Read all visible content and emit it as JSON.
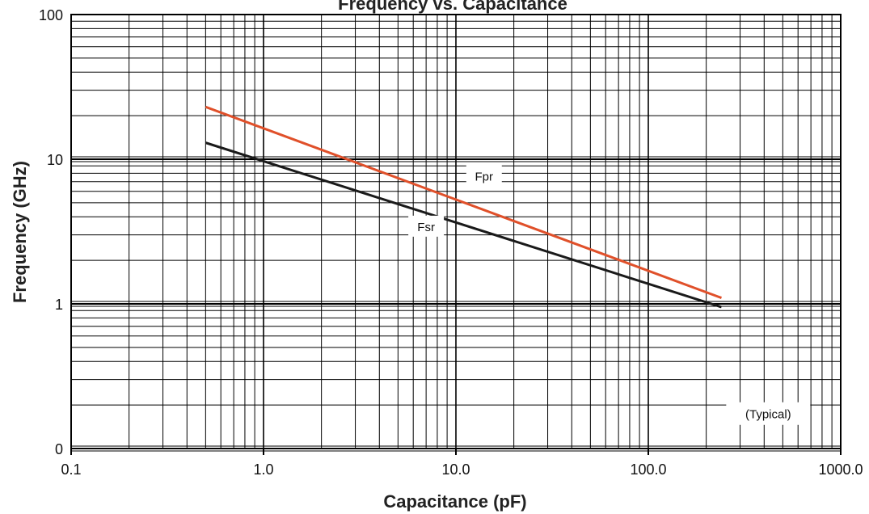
{
  "chart_data": {
    "type": "line",
    "title": "Frequency vs. Capacitance",
    "xlabel": "Capacitance (pF)",
    "ylabel": "Frequency (GHz)",
    "x_scale": "log",
    "y_scale": "log",
    "xlim": [
      0.1,
      1000
    ],
    "ylim": [
      0.1,
      100
    ],
    "x_ticks": [
      0.1,
      1,
      10,
      100,
      1000
    ],
    "x_tick_labels": [
      "0.1",
      "1.0",
      "10.0",
      "100.0",
      "1000.0"
    ],
    "y_ticks": [
      0.1,
      1,
      10,
      100
    ],
    "y_tick_labels": [
      "0",
      "1",
      "10",
      "100"
    ],
    "grid": true,
    "note": "(Typical)",
    "series": [
      {
        "name": "Fpr",
        "color": "#e0502a",
        "x": [
          0.5,
          240
        ],
        "y": [
          23,
          1.1
        ]
      },
      {
        "name": "Fsr",
        "color": "#1a1a1a",
        "x": [
          0.5,
          240
        ],
        "y": [
          13,
          0.95
        ]
      }
    ]
  }
}
